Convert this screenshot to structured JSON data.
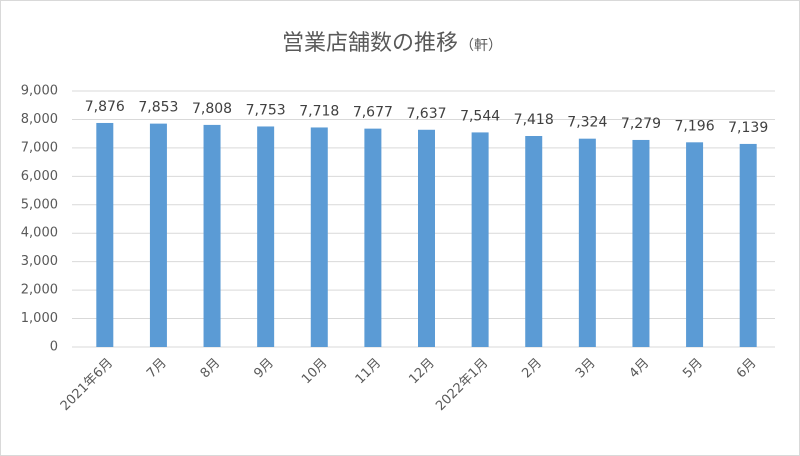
{
  "chart_data": {
    "type": "bar",
    "title": "営業店舗数の推移",
    "unit_label": "（軒）",
    "categories": [
      "2021年6月",
      "7月",
      "8月",
      "9月",
      "10月",
      "11月",
      "12月",
      "2022年1月",
      "2月",
      "3月",
      "4月",
      "5月",
      "6月"
    ],
    "values": [
      7876,
      7853,
      7808,
      7753,
      7718,
      7677,
      7637,
      7544,
      7418,
      7324,
      7279,
      7196,
      7139
    ],
    "value_labels": [
      "7,876",
      "7,853",
      "7,808",
      "7,753",
      "7,718",
      "7,677",
      "7,637",
      "7,544",
      "7,418",
      "7,324",
      "7,279",
      "7,196",
      "7,139"
    ],
    "color": "#5b9bd5",
    "ylim": [
      0,
      9000
    ],
    "yticks": [
      0,
      {
        "value": 1000,
        "label": "1,000"
      },
      {
        "value": 2000,
        "label": "2,000"
      },
      {
        "value": 3000,
        "label": "3,000"
      },
      {
        "value": 4000,
        "label": "4,000"
      },
      {
        "value": 5000,
        "label": "5,000"
      },
      {
        "value": 6000,
        "label": "6,000"
      },
      {
        "value": 7000,
        "label": "7,000"
      },
      {
        "value": 8000,
        "label": "8,000"
      },
      {
        "value": 9000,
        "label": "9,000"
      }
    ],
    "grid": true
  }
}
